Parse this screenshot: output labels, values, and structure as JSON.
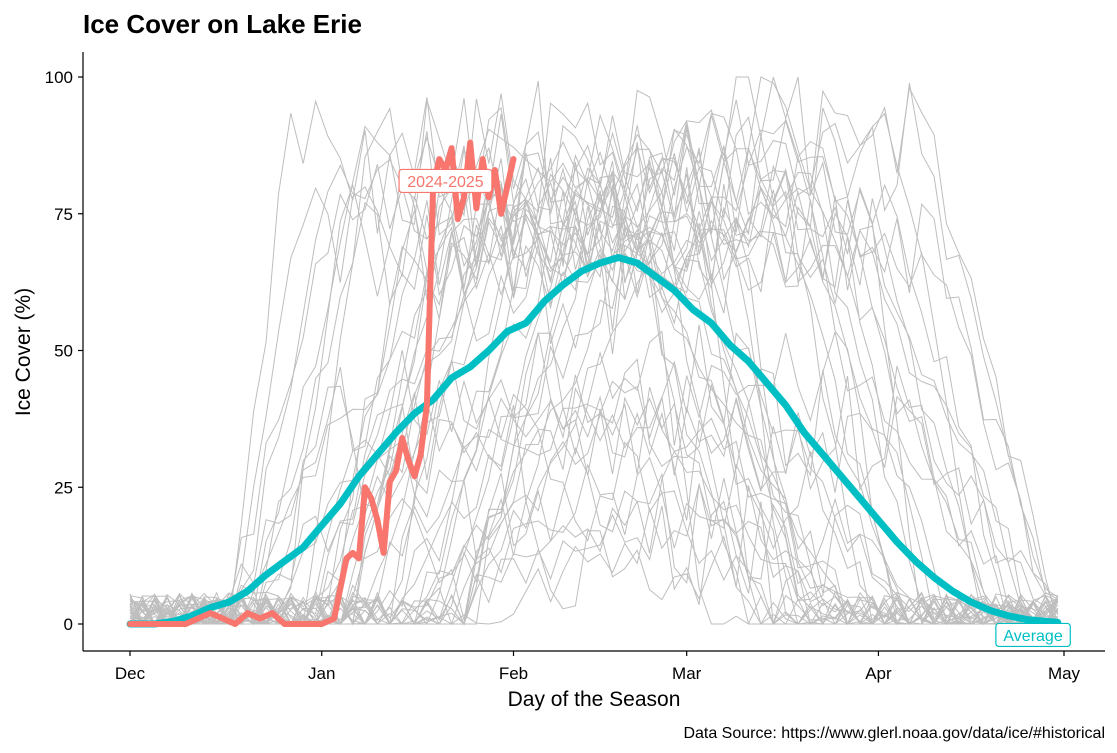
{
  "chart_data": {
    "type": "line",
    "title": "Ice Cover on Lake Erie",
    "xlabel": "Day of the Season",
    "ylabel": "Ice Cover (%)",
    "caption": "Data Source: https://www.glerl.noaa.gov/data/ice/#historical",
    "x_unit": "date (season Dec–May)",
    "xlim": [
      "Dec 1",
      "May 1"
    ],
    "ylim": [
      0,
      100
    ],
    "x_ticks": [
      "Dec",
      "Jan",
      "Feb",
      "Mar",
      "Apr",
      "May"
    ],
    "y_ticks": [
      0,
      25,
      50,
      75,
      100
    ],
    "grid": false,
    "highlight": {
      "name": "2024-2025",
      "color": "#F8766D",
      "x": [
        "Dec 1",
        "Dec 6",
        "Dec 10",
        "Dec 12",
        "Dec 14",
        "Dec 16",
        "Dec 18",
        "Dec 20",
        "Dec 22",
        "Dec 24",
        "Dec 26",
        "Dec 28",
        "Dec 30",
        "Jan 1",
        "Jan 3",
        "Jan 5",
        "Jan 6",
        "Jan 7",
        "Jan 8",
        "Jan 9",
        "Jan 10",
        "Jan 11",
        "Jan 12",
        "Jan 13",
        "Jan 14",
        "Jan 15",
        "Jan 16",
        "Jan 17",
        "Jan 18",
        "Jan 19",
        "Jan 20",
        "Jan 21",
        "Jan 22",
        "Jan 23",
        "Jan 24",
        "Jan 25",
        "Jan 26",
        "Jan 27",
        "Jan 28",
        "Jan 29",
        "Jan 30",
        "Jan 31",
        "Feb 1"
      ],
      "values": [
        0,
        0,
        0,
        1,
        2,
        1,
        0,
        2,
        1,
        2,
        0,
        0,
        0,
        0,
        1,
        12,
        13,
        12,
        25,
        23,
        19,
        13,
        26,
        28,
        34,
        30,
        27,
        31,
        40,
        80,
        85,
        83,
        87,
        74,
        78,
        88,
        76,
        85,
        78,
        83,
        75,
        80,
        85
      ]
    },
    "average": {
      "name": "Average",
      "color": "#00BFC4",
      "x": [
        "Dec 1",
        "Dec 5",
        "Dec 8",
        "Dec 11",
        "Dec 14",
        "Dec 17",
        "Dec 20",
        "Dec 23",
        "Dec 26",
        "Dec 29",
        "Jan 1",
        "Jan 4",
        "Jan 7",
        "Jan 10",
        "Jan 13",
        "Jan 16",
        "Jan 19",
        "Jan 22",
        "Jan 25",
        "Jan 28",
        "Jan 31",
        "Feb 3",
        "Feb 6",
        "Feb 9",
        "Feb 12",
        "Feb 15",
        "Feb 18",
        "Feb 21",
        "Feb 24",
        "Feb 27",
        "Mar 2",
        "Mar 5",
        "Mar 8",
        "Mar 11",
        "Mar 14",
        "Mar 17",
        "Mar 20",
        "Mar 23",
        "Mar 26",
        "Mar 29",
        "Apr 1",
        "Apr 4",
        "Apr 7",
        "Apr 10",
        "Apr 13",
        "Apr 16",
        "Apr 19",
        "Apr 22",
        "Apr 25",
        "Apr 28",
        "Apr 30"
      ],
      "values": [
        0,
        0,
        0.5,
        1.5,
        3,
        4,
        6,
        9,
        11.5,
        14,
        18,
        22,
        27,
        31,
        35,
        38.5,
        41,
        45,
        47,
        50,
        53.5,
        55,
        59,
        62,
        64.5,
        66,
        67,
        66,
        63.5,
        61,
        57.5,
        55,
        51,
        48,
        44,
        40,
        35,
        31,
        27,
        23,
        19,
        15,
        11.5,
        8.5,
        6,
        4,
        2.5,
        1.5,
        0.8,
        0.5,
        0.3
      ]
    },
    "labels": [
      {
        "text": "2024-2025",
        "series": "highlight",
        "at_x": "Jan 21",
        "at_y": 81
      },
      {
        "text": "Average",
        "series": "average",
        "at_x": "Apr 26",
        "at_y": -2
      }
    ],
    "background_series_color": "#BEBEBE"
  }
}
